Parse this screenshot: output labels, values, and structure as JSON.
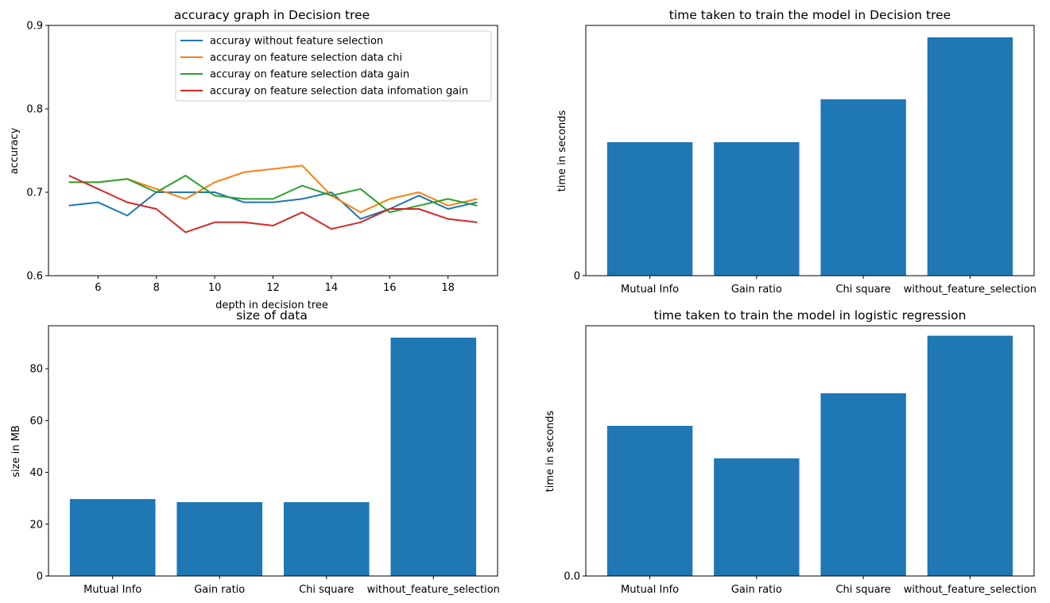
{
  "chart_data": [
    {
      "type": "line",
      "title": "accuracy graph in Decision tree",
      "xlabel": "depth in decision tree",
      "ylabel": "accuracy",
      "xlim": [
        4.3,
        19.7
      ],
      "ylim": [
        0.6,
        0.9
      ],
      "xticks": [
        "6",
        "8",
        "10",
        "12",
        "14",
        "16",
        "18"
      ],
      "yticks": [
        "0.6",
        "0.7",
        "0.8",
        "0.9"
      ],
      "legend_position": "upper right",
      "x": [
        5,
        6,
        7,
        8,
        9,
        10,
        11,
        12,
        13,
        14,
        15,
        16,
        17,
        18,
        19
      ],
      "series": [
        {
          "name": "accuray without feature selection",
          "color": "#1f77b4",
          "values": [
            0.684,
            0.688,
            0.672,
            0.7,
            0.7,
            0.7,
            0.688,
            0.688,
            0.692,
            0.7,
            0.668,
            0.68,
            0.696,
            0.68,
            0.688
          ]
        },
        {
          "name": "accuray on feature selection data chi",
          "color": "#ff7f0e",
          "values": [
            0.712,
            0.712,
            0.716,
            0.704,
            0.692,
            0.712,
            0.724,
            0.728,
            0.732,
            0.696,
            0.676,
            0.692,
            0.7,
            0.684,
            0.692
          ]
        },
        {
          "name": "accuray on feature selection data gain",
          "color": "#2ca02c",
          "values": [
            0.712,
            0.712,
            0.716,
            0.7,
            0.72,
            0.696,
            0.692,
            0.692,
            0.708,
            0.696,
            0.704,
            0.676,
            0.684,
            0.692,
            0.684
          ]
        },
        {
          "name": "accuray on feature selection data infomation gain",
          "color": "#d62728",
          "values": [
            0.72,
            0.704,
            0.688,
            0.68,
            0.652,
            0.664,
            0.664,
            0.66,
            0.676,
            0.656,
            0.664,
            0.68,
            0.68,
            0.668,
            0.664
          ]
        }
      ]
    },
    {
      "type": "bar",
      "title": "time taken to train the model in Decision tree",
      "xlabel": "",
      "ylabel": "time in seconds",
      "categories": [
        "Mutual Info",
        "Gain ratio",
        "Chi square",
        "without_feature_selection"
      ],
      "values": [
        0.56,
        0.56,
        0.74,
        1.0
      ],
      "ylim": [
        0,
        1.05
      ],
      "yticks": [
        "0"
      ],
      "color": "#1f77b4"
    },
    {
      "type": "bar",
      "title": "size of data",
      "xlabel": "",
      "ylabel": "size in MB",
      "categories": [
        "Mutual Info",
        "Gain ratio",
        "Chi square",
        "without_feature_selection"
      ],
      "values": [
        29.7,
        28.5,
        28.5,
        92.0
      ],
      "ylim": [
        0,
        96.6
      ],
      "yticks": [
        "0",
        "20",
        "40",
        "60",
        "80"
      ],
      "color": "#1f77b4"
    },
    {
      "type": "bar",
      "title": "time taken to train the model in logistic regression",
      "xlabel": "",
      "ylabel": "time in seconds",
      "categories": [
        "Mutual Info",
        "Gain ratio",
        "Chi square",
        "without_feature_selection"
      ],
      "values": [
        0.6,
        0.47,
        0.73,
        0.96
      ],
      "ylim": [
        0,
        1.0
      ],
      "yticks": [
        "0.0"
      ],
      "color": "#1f77b4"
    }
  ]
}
